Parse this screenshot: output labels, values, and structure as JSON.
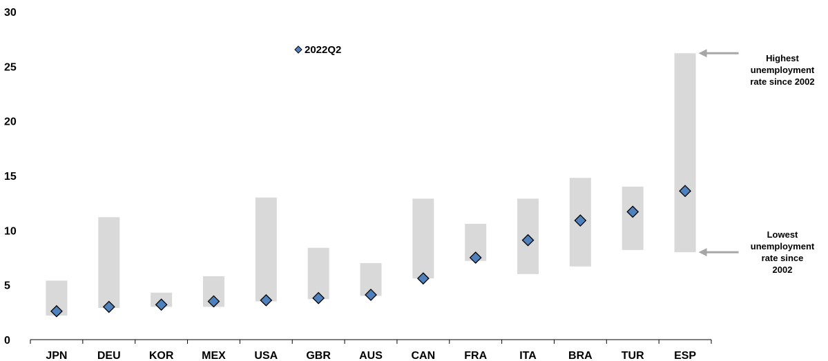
{
  "chart_data": {
    "type": "range-bar-with-markers",
    "title": "",
    "xlabel": "",
    "ylabel": "",
    "ylim": [
      0,
      30
    ],
    "yticks": [
      0,
      5,
      10,
      15,
      20,
      25,
      30
    ],
    "categories": [
      "JPN",
      "DEU",
      "KOR",
      "MEX",
      "USA",
      "GBR",
      "AUS",
      "CAN",
      "FRA",
      "ITA",
      "BRA",
      "TUR",
      "ESP"
    ],
    "range": {
      "low": [
        2.2,
        2.9,
        3.0,
        3.0,
        3.5,
        3.7,
        4.0,
        5.6,
        7.2,
        6.0,
        6.7,
        8.2,
        8.0
      ],
      "high": [
        5.4,
        11.2,
        4.3,
        5.8,
        13.0,
        8.4,
        7.0,
        12.9,
        10.6,
        12.9,
        14.8,
        14.0,
        26.2
      ],
      "color": "#d9d9d9"
    },
    "series": [
      {
        "name": "2022Q2",
        "marker": "diamond",
        "color": "#4f81bd",
        "values": [
          2.6,
          3.0,
          3.2,
          3.5,
          3.6,
          3.8,
          4.1,
          5.6,
          7.5,
          9.1,
          10.9,
          11.7,
          13.6
        ]
      }
    ],
    "legend": {
      "position": "top-center"
    },
    "grid": false,
    "annotations": [
      {
        "lines": [
          "Highest",
          "unemployment",
          "rate since 2002"
        ],
        "target": "ESP.high"
      },
      {
        "lines": [
          "Lowest",
          "unemployment",
          "rate since",
          "2002"
        ],
        "target": "ESP.low"
      }
    ]
  }
}
